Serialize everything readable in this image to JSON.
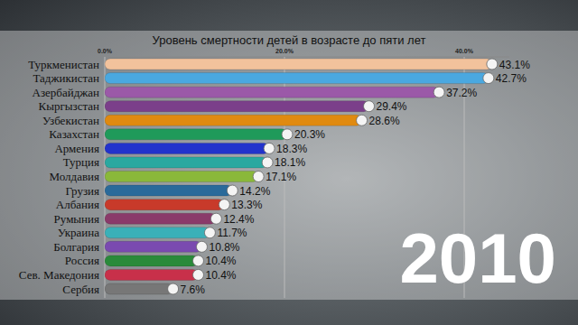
{
  "chart_data": {
    "type": "bar",
    "orientation": "horizontal",
    "title": "Уровень смертности детей в возрасте до пяти лет",
    "categories": [
      "Туркменистан",
      "Таджикистан",
      "Азербайджан",
      "Кыргызстан",
      "Узбекистан",
      "Казахстан",
      "Армения",
      "Турция",
      "Молдавия",
      "Грузия",
      "Албания",
      "Румыния",
      "Украина",
      "Болгария",
      "Россия",
      "Сев. Македония",
      "Сербия"
    ],
    "values": [
      43.1,
      42.7,
      37.2,
      29.4,
      28.6,
      20.3,
      18.3,
      18.1,
      17.1,
      14.2,
      13.3,
      12.4,
      11.7,
      10.8,
      10.4,
      10.4,
      7.6
    ],
    "value_labels": [
      "43.1%",
      "42.7%",
      "37.2%",
      "29.4%",
      "28.6%",
      "20.3%",
      "18.3%",
      "18.1%",
      "17.1%",
      "14.2%",
      "13.3%",
      "12.4%",
      "11.7%",
      "10.8%",
      "10.4%",
      "10.4%",
      "7.6%"
    ],
    "colors": [
      "#f2c29c",
      "#4aa8e0",
      "#9b59a8",
      "#7b3f8a",
      "#e08a10",
      "#1f9a5a",
      "#2233cc",
      "#2aa8a0",
      "#8ab83a",
      "#2a6a9a",
      "#c83a2a",
      "#8a3a6a",
      "#3ab0b8",
      "#7a4ab0",
      "#2a8a3a",
      "#c8304a",
      "#777777"
    ],
    "xlim": [
      0,
      45
    ],
    "xticks": [
      {
        "value": 0,
        "label": "0.0%"
      },
      {
        "value": 20,
        "label": "20.0%"
      },
      {
        "value": 40,
        "label": "40.0%"
      }
    ],
    "grid": true,
    "data_labels": true,
    "annotations": [
      "2010"
    ]
  }
}
